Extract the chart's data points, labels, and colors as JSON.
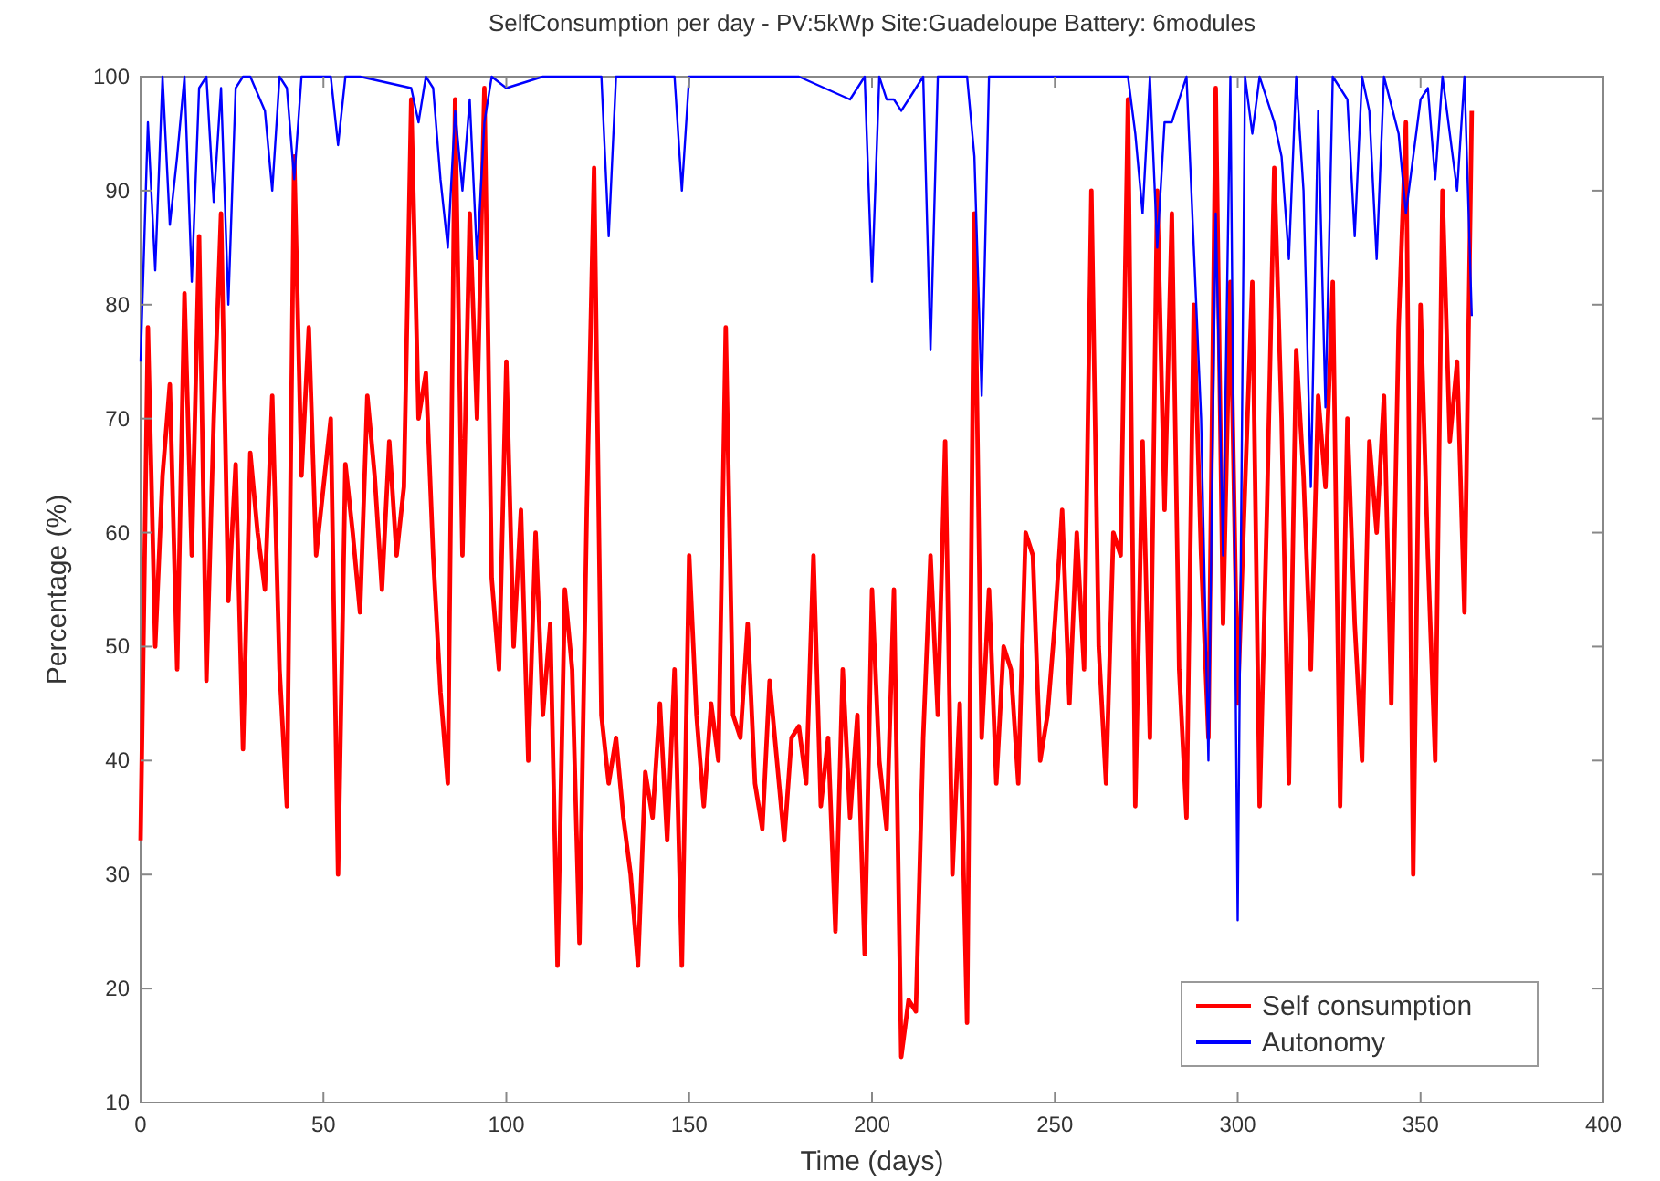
{
  "chart_data": {
    "type": "line",
    "title": "SelfConsumption per day - PV:5kWp Site:Guadeloupe Battery: 6modules",
    "xlabel": "Time (days)",
    "ylabel": "Percentage (%)",
    "xlim": [
      0,
      400
    ],
    "xticks": [
      0,
      50,
      100,
      150,
      200,
      250,
      300,
      350,
      400
    ],
    "ylim": [
      10,
      100
    ],
    "yticks": [
      10,
      20,
      30,
      40,
      50,
      60,
      70,
      80,
      90,
      100
    ],
    "legend": "bottom right",
    "line_style": "solid",
    "grid": false,
    "series": [
      {
        "name": "Self consumption",
        "color": "#ff0000",
        "x": [
          0,
          2,
          4,
          6,
          8,
          10,
          12,
          14,
          16,
          18,
          20,
          22,
          24,
          26,
          28,
          30,
          32,
          34,
          36,
          38,
          40,
          42,
          44,
          46,
          48,
          50,
          52,
          54,
          56,
          58,
          60,
          62,
          64,
          66,
          68,
          70,
          72,
          74,
          76,
          78,
          80,
          82,
          84,
          86,
          88,
          90,
          92,
          94,
          96,
          98,
          100,
          102,
          104,
          106,
          108,
          110,
          112,
          114,
          116,
          118,
          120,
          122,
          124,
          126,
          128,
          130,
          132,
          134,
          136,
          138,
          140,
          142,
          144,
          146,
          148,
          150,
          152,
          154,
          156,
          158,
          160,
          162,
          164,
          166,
          168,
          170,
          172,
          174,
          176,
          178,
          180,
          182,
          184,
          186,
          188,
          190,
          192,
          194,
          196,
          198,
          200,
          202,
          204,
          206,
          208,
          210,
          212,
          214,
          216,
          218,
          220,
          222,
          224,
          226,
          228,
          230,
          232,
          234,
          236,
          238,
          240,
          242,
          244,
          246,
          248,
          250,
          252,
          254,
          256,
          258,
          260,
          262,
          264,
          266,
          268,
          270,
          272,
          274,
          276,
          278,
          280,
          282,
          284,
          286,
          288,
          290,
          292,
          294,
          296,
          298,
          300,
          302,
          304,
          306,
          308,
          310,
          312,
          314,
          316,
          318,
          320,
          322,
          324,
          326,
          328,
          330,
          332,
          334,
          336,
          338,
          340,
          342,
          344,
          346,
          348,
          350,
          352,
          354,
          356,
          358,
          360,
          362,
          364
        ],
        "values": [
          33,
          78,
          50,
          65,
          73,
          48,
          81,
          58,
          86,
          47,
          70,
          88,
          54,
          66,
          41,
          67,
          60,
          55,
          72,
          48,
          36,
          93,
          65,
          78,
          58,
          64,
          70,
          30,
          66,
          60,
          53,
          72,
          65,
          55,
          68,
          58,
          64,
          98,
          70,
          74,
          58,
          46,
          38,
          98,
          58,
          88,
          70,
          99,
          56,
          48,
          75,
          50,
          62,
          40,
          60,
          44,
          52,
          22,
          55,
          48,
          24,
          62,
          92,
          44,
          38,
          42,
          35,
          30,
          22,
          39,
          35,
          45,
          33,
          48,
          22,
          58,
          44,
          36,
          45,
          40,
          78,
          44,
          42,
          52,
          38,
          34,
          47,
          40,
          33,
          42,
          43,
          38,
          58,
          36,
          42,
          25,
          48,
          35,
          44,
          23,
          55,
          40,
          34,
          55,
          14,
          19,
          18,
          42,
          58,
          44,
          68,
          30,
          45,
          17,
          88,
          42,
          55,
          38,
          50,
          48,
          38,
          60,
          58,
          40,
          44,
          52,
          62,
          45,
          60,
          48,
          90,
          50,
          38,
          60,
          58,
          98,
          36,
          68,
          42,
          90,
          62,
          88,
          48,
          35,
          80,
          58,
          42,
          99,
          52,
          82,
          45,
          64,
          82,
          36,
          62,
          92,
          70,
          38,
          76,
          65,
          48,
          72,
          64,
          82,
          36,
          70,
          52,
          40,
          68,
          60,
          72,
          45,
          78,
          96,
          30,
          80,
          58,
          40,
          90,
          68,
          75,
          53,
          97
        ]
      },
      {
        "name": "Autonomy",
        "color": "#0000ff",
        "x": [
          0,
          2,
          4,
          6,
          8,
          10,
          12,
          14,
          16,
          18,
          20,
          22,
          24,
          26,
          28,
          30,
          34,
          36,
          38,
          40,
          42,
          44,
          46,
          52,
          54,
          56,
          60,
          74,
          76,
          78,
          80,
          82,
          84,
          86,
          88,
          90,
          92,
          94,
          96,
          100,
          110,
          124,
          126,
          128,
          130,
          140,
          146,
          148,
          150,
          160,
          180,
          194,
          196,
          198,
          200,
          202,
          204,
          206,
          208,
          210,
          212,
          214,
          216,
          218,
          226,
          228,
          230,
          232,
          240,
          260,
          270,
          272,
          274,
          276,
          278,
          280,
          282,
          284,
          286,
          290,
          292,
          294,
          296,
          298,
          300,
          302,
          304,
          306,
          310,
          312,
          314,
          316,
          318,
          320,
          322,
          324,
          326,
          330,
          332,
          334,
          336,
          338,
          340,
          344,
          346,
          350,
          352,
          354,
          356,
          358,
          360,
          362,
          364
        ],
        "values": [
          75,
          96,
          83,
          100,
          87,
          93,
          100,
          82,
          99,
          100,
          89,
          99,
          80,
          99,
          100,
          100,
          97,
          90,
          100,
          99,
          91,
          100,
          100,
          100,
          94,
          100,
          100,
          99,
          96,
          100,
          99,
          91,
          85,
          97,
          90,
          98,
          84,
          96,
          100,
          99,
          100,
          100,
          100,
          86,
          100,
          100,
          100,
          90,
          100,
          100,
          100,
          98,
          99,
          100,
          82,
          100,
          98,
          98,
          97,
          98,
          99,
          100,
          76,
          100,
          100,
          93,
          72,
          100,
          100,
          100,
          100,
          95,
          88,
          100,
          85,
          96,
          96,
          98,
          100,
          70,
          40,
          88,
          58,
          100,
          26,
          100,
          95,
          100,
          96,
          93,
          84,
          100,
          90,
          64,
          97,
          71,
          100,
          98,
          86,
          100,
          97,
          84,
          100,
          95,
          88,
          98,
          99,
          91,
          100,
          95,
          90,
          100,
          79
        ]
      }
    ]
  }
}
